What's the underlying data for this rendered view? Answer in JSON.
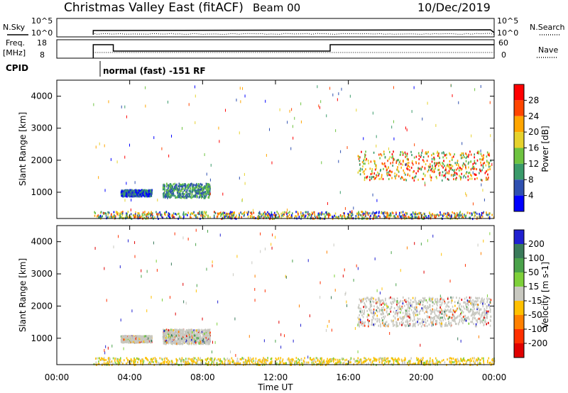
{
  "header": {
    "title": "Christmas Valley East (fitACF)",
    "beam": "Beam 00",
    "date": "10/Dec/2019"
  },
  "top_panels": {
    "nsky_label": "N.Sky",
    "nsearch_label": "N.Search",
    "nsky_ticks": [
      "10^5",
      "10^0"
    ],
    "nsearch_ticks": [
      "10^5",
      "10^0"
    ],
    "freq_label_1": "Freq.",
    "freq_label_2": "[MHz]",
    "freq_ticks": [
      "18",
      "8"
    ],
    "nave_label": "Nave",
    "nave_ticks": [
      "60",
      "0"
    ],
    "cpid_label": "CPID",
    "cpid_text": "normal (fast) -151 RF"
  },
  "chart_data": [
    {
      "type": "heatmap",
      "name": "power",
      "ylabel": "Slant Range [km]",
      "y_ticks": [
        1000,
        2000,
        3000,
        4000
      ],
      "ylim": [
        180,
        4500
      ],
      "xlim": [
        0,
        24
      ],
      "colorbar_label": "Power [dB]",
      "colorbar_ticks": [
        4,
        8,
        12,
        16,
        20,
        24,
        28
      ],
      "colorbar_colors": [
        "#0000ff",
        "#2f50b0",
        "#3a9a6a",
        "#6ec340",
        "#e6d22c",
        "#ffa500",
        "#ff4500",
        "#ff0000"
      ],
      "regions": [
        {
          "t0": 3.5,
          "t1": 5.2,
          "r0": 900,
          "r1": 1100,
          "level": "low"
        },
        {
          "t0": 5.8,
          "t1": 8.4,
          "r0": 850,
          "r1": 1300,
          "level": "mid"
        },
        {
          "t0": 16.5,
          "t1": 23.8,
          "r0": 1400,
          "r1": 2300,
          "level": "high"
        },
        {
          "t0": 2.0,
          "t1": 24.0,
          "r0": 200,
          "r1": 420,
          "level": "ground"
        }
      ]
    },
    {
      "type": "heatmap",
      "name": "velocity",
      "ylabel": "Slant Range [km]",
      "y_ticks": [
        1000,
        2000,
        3000,
        4000
      ],
      "ylim": [
        180,
        4500
      ],
      "xlim": [
        0,
        24
      ],
      "colorbar_label": "Velocity [m s-1]",
      "colorbar_ticks": [
        200,
        100,
        50,
        15,
        -15,
        -50,
        -100,
        -200
      ],
      "colorbar_colors": [
        "#2020d0",
        "#3a7a5a",
        "#4aa24a",
        "#7ed03a",
        "#c8c8c0",
        "#ffc000",
        "#ff8000",
        "#ff3000",
        "#e00000"
      ],
      "regions": [
        {
          "t0": 3.5,
          "t1": 5.2,
          "r0": 900,
          "r1": 1100,
          "level": "ground"
        },
        {
          "t0": 5.8,
          "t1": 8.4,
          "r0": 850,
          "r1": 1300,
          "level": "ground"
        },
        {
          "t0": 16.5,
          "t1": 23.8,
          "r0": 1400,
          "r1": 2300,
          "level": "ground"
        },
        {
          "t0": 2.0,
          "t1": 24.0,
          "r0": 200,
          "r1": 420,
          "level": "slow"
        }
      ]
    }
  ],
  "x_axis": {
    "label": "Time UT",
    "ticks": [
      "00:00",
      "04:00",
      "08:00",
      "12:00",
      "16:00",
      "20:00",
      "00:00"
    ],
    "tick_hours": [
      0,
      4,
      8,
      12,
      16,
      20,
      24
    ]
  }
}
